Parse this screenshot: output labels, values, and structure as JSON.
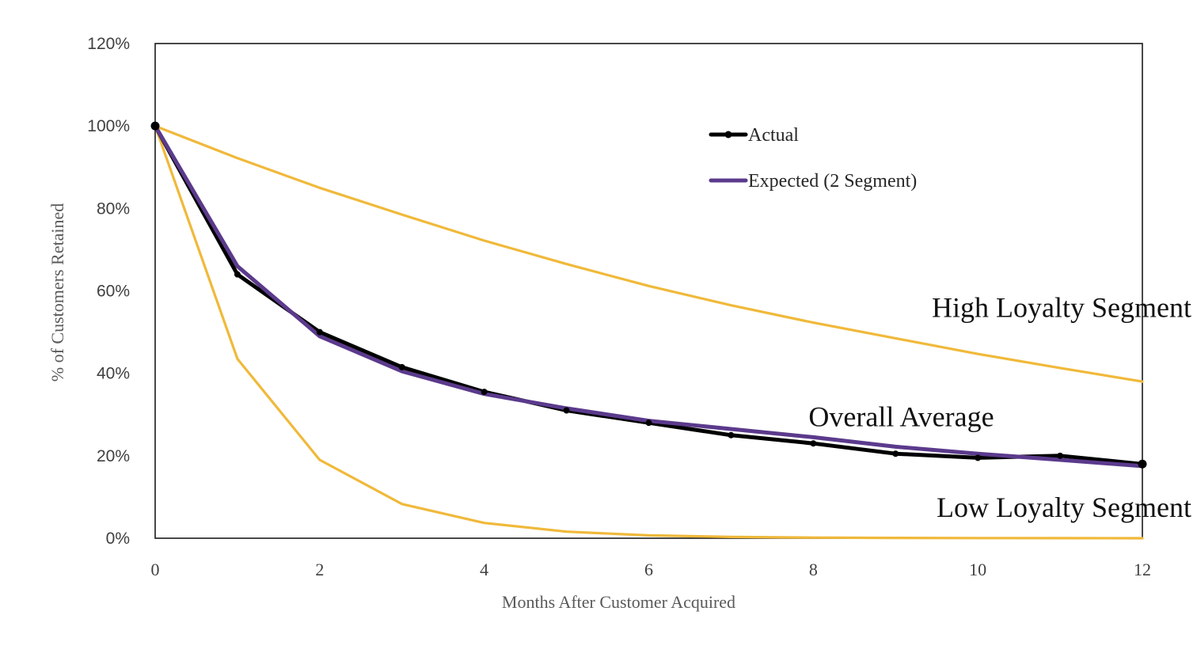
{
  "chart_data": {
    "type": "line",
    "title": "",
    "xlabel": "Months After Customer Acquired",
    "ylabel": "% of Customers Retained",
    "xlim": [
      0,
      12
    ],
    "ylim": [
      0,
      1.2
    ],
    "x_ticks": [
      0,
      2,
      4,
      6,
      8,
      10,
      12
    ],
    "x_tick_labels": [
      "0",
      "2",
      "4",
      "6",
      "8",
      "10",
      "12"
    ],
    "y_ticks": [
      0,
      0.2,
      0.4,
      0.6,
      0.8,
      1.0,
      1.2
    ],
    "y_tick_labels": [
      "0%",
      "20%",
      "40%",
      "60%",
      "80%",
      "100%",
      "120%"
    ],
    "grid": false,
    "legend_position": "top-center",
    "x": [
      0,
      1,
      2,
      3,
      4,
      5,
      6,
      7,
      8,
      9,
      10,
      11,
      12
    ],
    "series": [
      {
        "name": "Actual",
        "color": "#000000",
        "in_legend": true,
        "markers": true,
        "values": [
          1.0,
          0.64,
          0.5,
          0.415,
          0.355,
          0.31,
          0.28,
          0.25,
          0.23,
          0.205,
          0.195,
          0.2,
          0.18
        ]
      },
      {
        "name": "Expected (2 Segment)",
        "color": "#5b3a8c",
        "in_legend": true,
        "markers": false,
        "values": [
          1.0,
          0.66,
          0.49,
          0.405,
          0.35,
          0.315,
          0.285,
          0.265,
          0.245,
          0.222,
          0.205,
          0.19,
          0.175
        ]
      },
      {
        "name": "High Loyalty Segment",
        "color": "#f0b93a",
        "in_legend": false,
        "markers": false,
        "values": [
          1.0,
          0.922,
          0.85,
          0.785,
          0.722,
          0.665,
          0.612,
          0.565,
          0.523,
          0.485,
          0.447,
          0.413,
          0.38
        ]
      },
      {
        "name": "Low Loyalty Segment",
        "color": "#f0b93a",
        "in_legend": false,
        "markers": false,
        "values": [
          1.0,
          0.435,
          0.19,
          0.083,
          0.037,
          0.016,
          0.007,
          0.003,
          0.0015,
          0.0007,
          0.0003,
          0.0001,
          0.0
        ]
      }
    ],
    "annotations": [
      {
        "text": "High Loyalty Segment",
        "x": 12.0,
        "y": 0.56
      },
      {
        "text": "Overall Average",
        "x": 9.6,
        "y": 0.295
      },
      {
        "text": "Low Loyalty Segment",
        "x": 12.0,
        "y": 0.075
      }
    ]
  }
}
